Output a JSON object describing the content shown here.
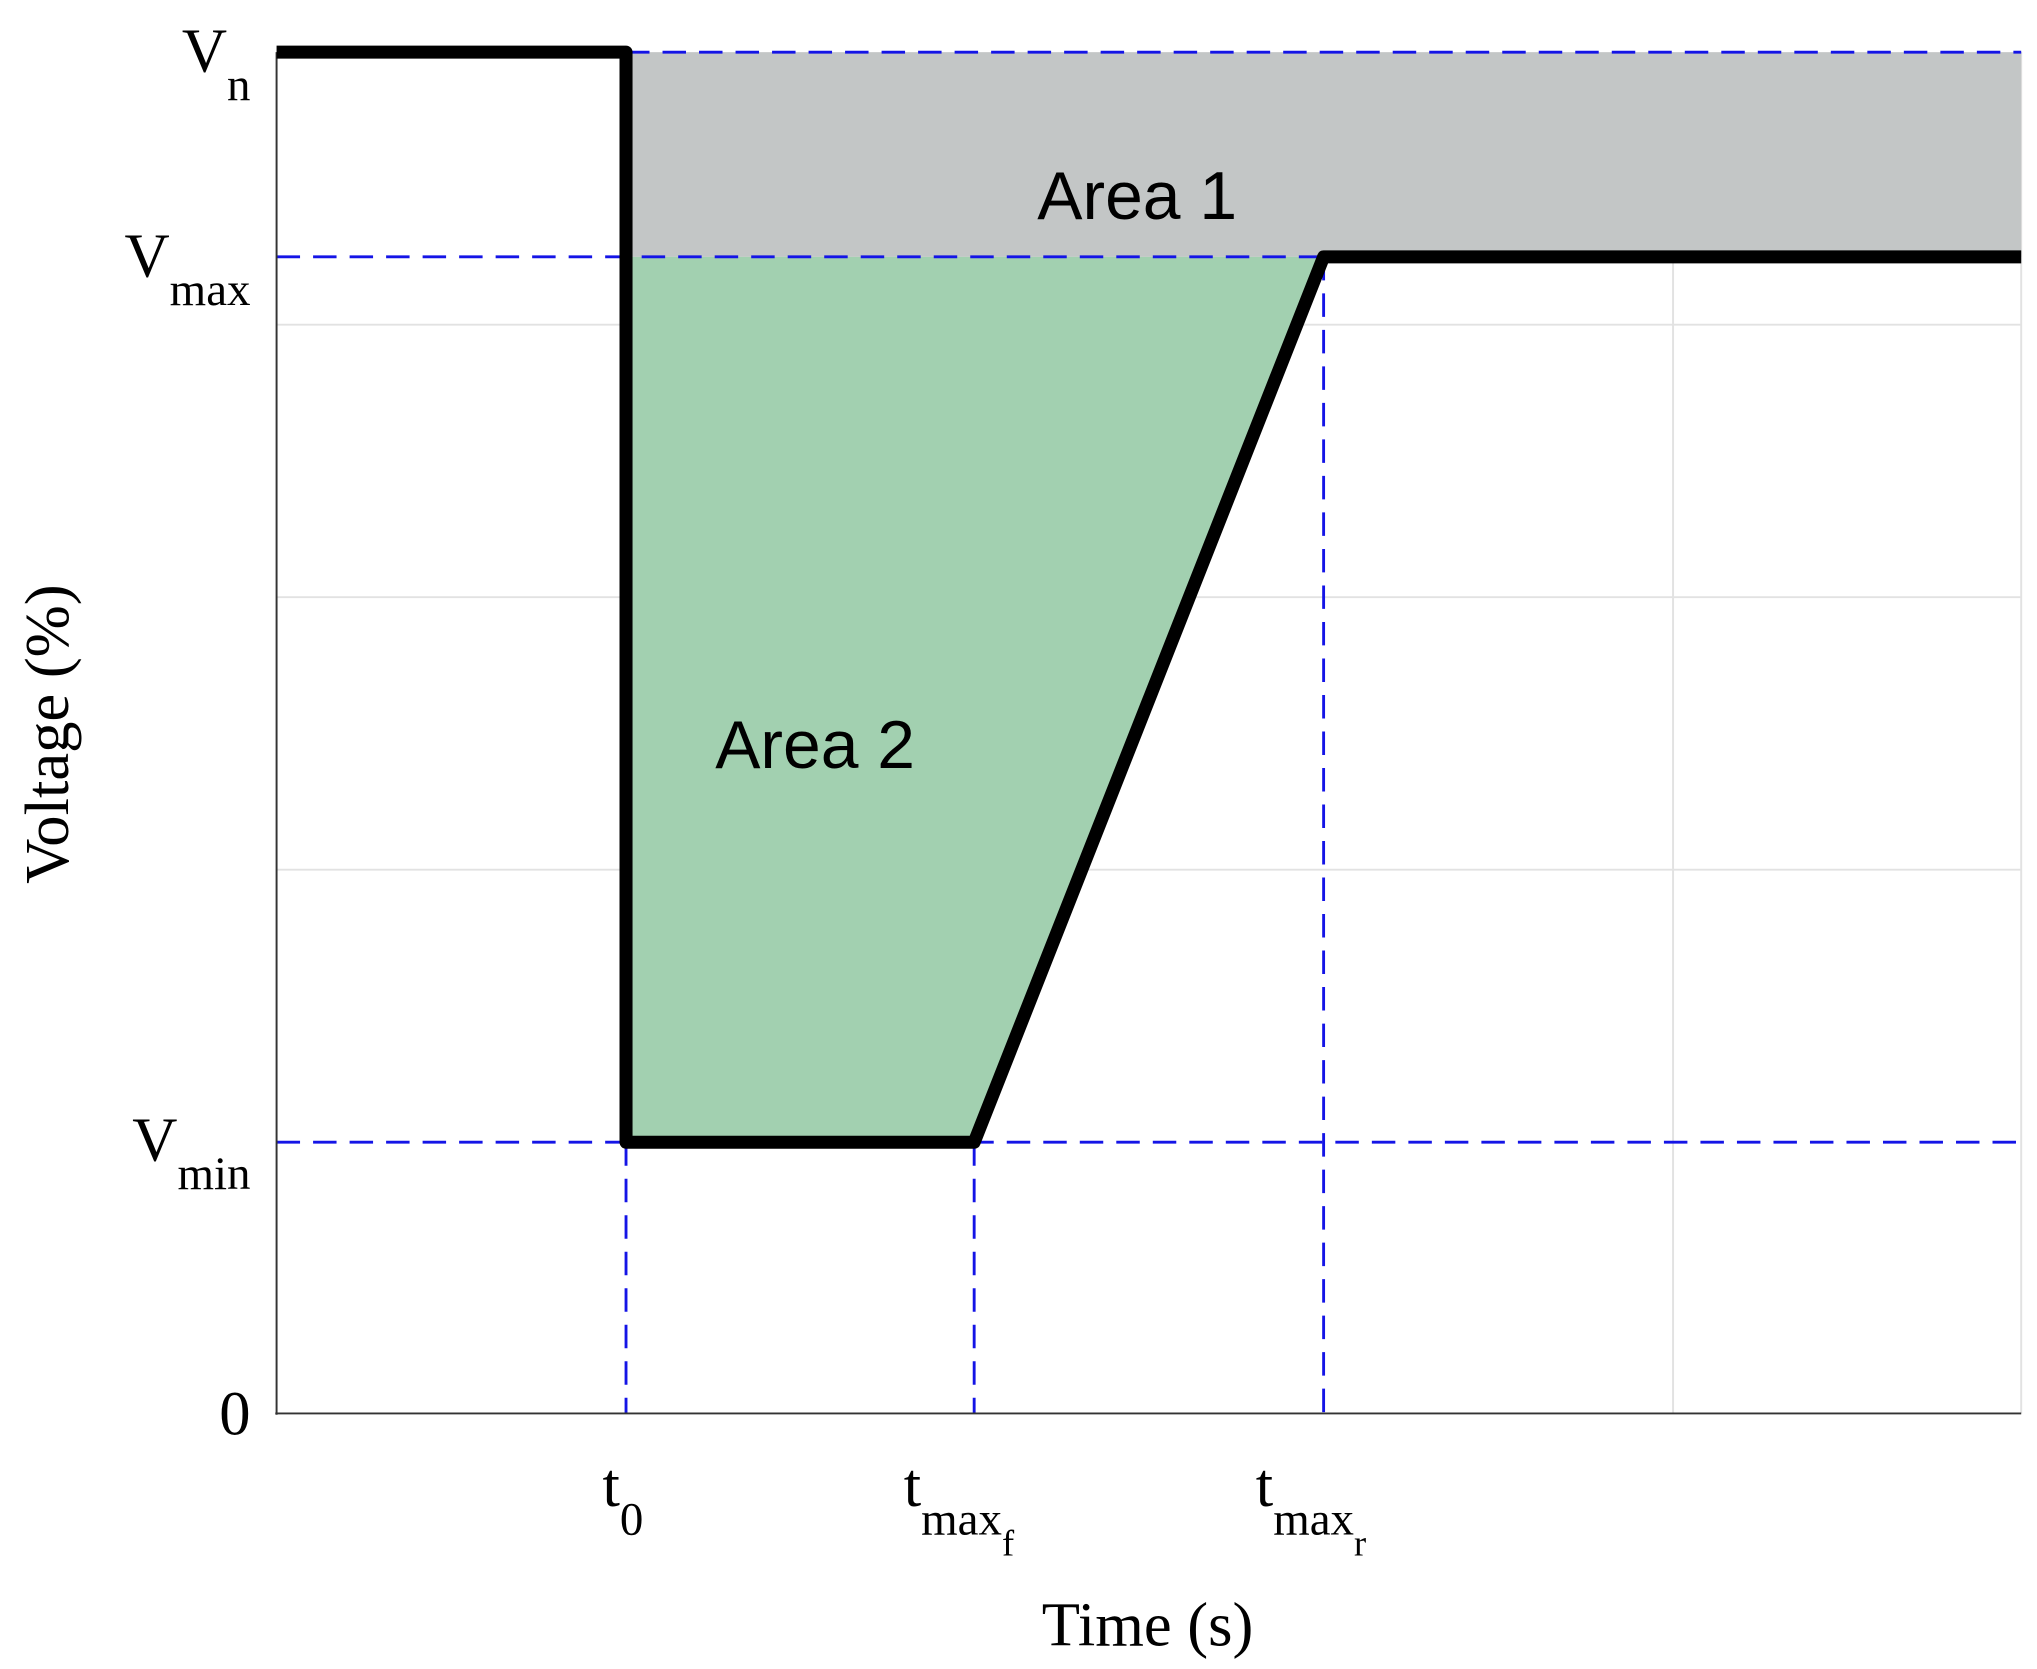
{
  "y_axis": {
    "label": "Voltage (%)",
    "ticks": [
      {
        "base": "V",
        "sub": "n"
      },
      {
        "base": "V",
        "sub": "max"
      },
      {
        "base": "V",
        "sub": "min"
      },
      {
        "base": "0"
      }
    ]
  },
  "x_axis": {
    "label": "Time (s)",
    "ticks": [
      {
        "base": "t",
        "sub": "0"
      },
      {
        "base": "t",
        "sub": "max",
        "subsub": "f"
      },
      {
        "base": "t",
        "sub": "max",
        "subsub": "r"
      }
    ]
  },
  "annotations": [
    "Area 1",
    "Area 2"
  ]
}
